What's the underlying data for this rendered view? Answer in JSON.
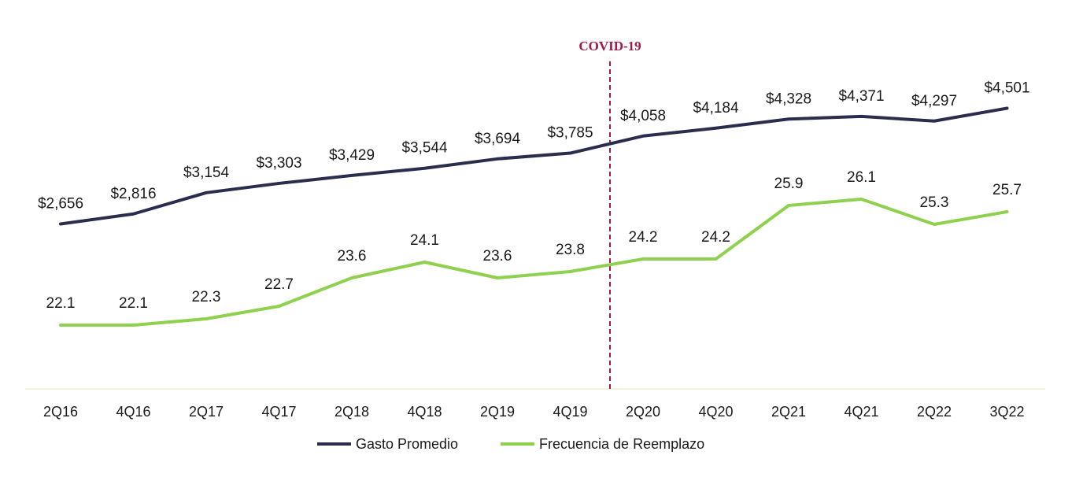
{
  "chart_data": {
    "type": "line",
    "categories": [
      "2Q16",
      "4Q16",
      "2Q17",
      "4Q17",
      "2Q18",
      "4Q18",
      "2Q19",
      "4Q19",
      "2Q20",
      "4Q20",
      "2Q21",
      "4Q21",
      "2Q22",
      "3Q22"
    ],
    "series": [
      {
        "name": "Gasto Promedio",
        "color": "#2b2d4e",
        "values": [
          2656,
          2816,
          3154,
          3303,
          3429,
          3544,
          3694,
          3785,
          4058,
          4184,
          4328,
          4371,
          4297,
          4501
        ],
        "labels": [
          "$2,656",
          "$2,816",
          "$3,154",
          "$3,303",
          "$3,429",
          "$3,544",
          "$3,694",
          "$3,785",
          "$4,058",
          "$4,184",
          "$4,328",
          "$4,371",
          "$4,297",
          "$4,501"
        ]
      },
      {
        "name": "Frecuencia de Reemplazo",
        "color": "#8fd14f",
        "values": [
          22.1,
          22.1,
          22.3,
          22.7,
          23.6,
          24.1,
          23.6,
          23.8,
          24.2,
          24.2,
          25.9,
          26.1,
          25.3,
          25.7
        ],
        "labels": [
          "22.1",
          "22.1",
          "22.3",
          "22.7",
          "23.6",
          "24.1",
          "23.6",
          "23.8",
          "24.2",
          "24.2",
          "25.9",
          "26.1",
          "25.3",
          "25.7"
        ]
      }
    ],
    "annotation": {
      "text": "COVID-19",
      "color": "#a3174a",
      "between": [
        "4Q19",
        "2Q20"
      ]
    },
    "axis_line_color": "#f0f0cc",
    "legend_position": "bottom-center",
    "grid": false
  }
}
